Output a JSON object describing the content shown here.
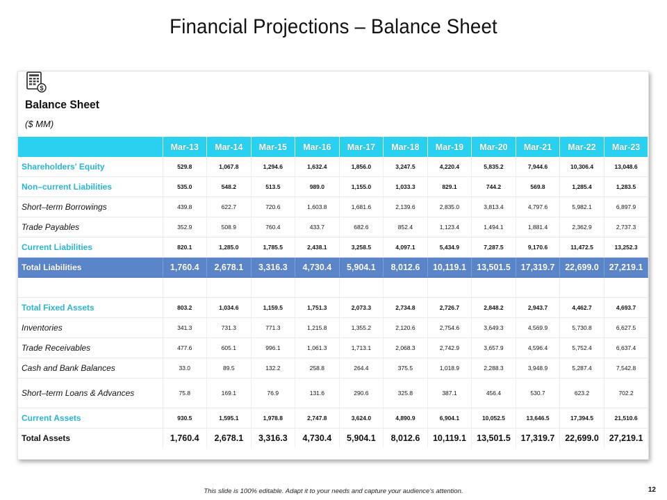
{
  "slide": {
    "title": "Financial Projections – Balance Sheet",
    "footer": "This slide is 100% editable. Adapt it to your needs and capture your audience's attention.",
    "page_number": "12"
  },
  "panel": {
    "icon": "balance-sheet-document-dollar-icon",
    "heading": "Balance Sheet",
    "unit": "($ MM)"
  },
  "colors": {
    "header_bg": "#2ad0ef",
    "total_bg": "#5b85c9",
    "blue_label": "#2ab3d6"
  },
  "table": {
    "columns": [
      "Mar-13",
      "Mar-14",
      "Mar-15",
      "Mar-16",
      "Mar-17",
      "Mar-18",
      "Mar-19",
      "Mar-20",
      "Mar-21",
      "Mar-22",
      "Mar-23"
    ],
    "rows": [
      {
        "label": "Shareholders' Equity",
        "values": [
          "529.8",
          "1,067.8",
          "1,294.6",
          "1,632.4",
          "1,856.0",
          "3,247.5",
          "4,220.4",
          "5,835.2",
          "7,944.6",
          "10,306.4",
          "13,048.6"
        ]
      },
      {
        "label": "Non–current Liabilities",
        "values": [
          "535.0",
          "548.2",
          "513.5",
          "989.0",
          "1,155.0",
          "1,033.3",
          "829.1",
          "744.2",
          "569.8",
          "1,285.4",
          "1,283.5"
        ]
      },
      {
        "label": "Short–term Borrowings",
        "values": [
          "439.8",
          "622.7",
          "720.6",
          "1,603.8",
          "1,681.6",
          "2,139.6",
          "2,835.0",
          "3,813.4",
          "4,797.6",
          "5,982.1",
          "6,897.9"
        ]
      },
      {
        "label": "Trade Payables",
        "values": [
          "352.9",
          "508.9",
          "760.4",
          "433.7",
          "682.6",
          "852.4",
          "1,123.4",
          "1,494.1",
          "1,881.4",
          "2,362.9",
          "2,737.3"
        ]
      },
      {
        "label": "Current Liabilities",
        "values": [
          "820.1",
          "1,285.0",
          "1,785.5",
          "2,438.1",
          "3,258.5",
          "4,097.1",
          "5,434.9",
          "7,287.5",
          "9,170.6",
          "11,472.5",
          "13,252.3"
        ]
      },
      {
        "label": "Total Liabilities",
        "values": [
          "1,760.4",
          "2,678.1",
          "3,316.3",
          "4,730.4",
          "5,904.1",
          "8,012.6",
          "10,119.1",
          "13,501.5",
          "17,319.7",
          "22,699.0",
          "27,219.1"
        ]
      },
      {
        "label": "Total Fixed Assets",
        "values": [
          "803.2",
          "1,034.6",
          "1,159.5",
          "1,751.3",
          "2,073.3",
          "2,734.8",
          "2,726.7",
          "2,848.2",
          "2,943.7",
          "4,462.7",
          "4,693.7"
        ]
      },
      {
        "label": "Inventories",
        "values": [
          "341.3",
          "731.3",
          "771.3",
          "1,215.8",
          "1,355.2",
          "2,120.6",
          "2,754.6",
          "3,649.3",
          "4,569.9",
          "5,730.8",
          "6,627.5"
        ]
      },
      {
        "label": "Trade Receivables",
        "values": [
          "477.6",
          "605.1",
          "996.1",
          "1,061.3",
          "1,713.1",
          "2,068.3",
          "2,742.9",
          "3,657.9",
          "4,596.4",
          "5,752.4",
          "6,637.4"
        ]
      },
      {
        "label": "Cash and Bank Balances",
        "values": [
          "33.0",
          "89.5",
          "132.2",
          "258.8",
          "264.4",
          "375.5",
          "1,018.9",
          "2,288.3",
          "3,948.9",
          "5,287.4",
          "7,542.8"
        ]
      },
      {
        "label": "Short–term Loans & Advances",
        "values": [
          "75.8",
          "169.1",
          "76.9",
          "131.6",
          "290.6",
          "325.8",
          "387.1",
          "456.4",
          "530.7",
          "623.2",
          "702.2"
        ]
      },
      {
        "label": "Current Assets",
        "values": [
          "930.5",
          "1,595.1",
          "1,978.8",
          "2,747.8",
          "3,624.0",
          "4,890.9",
          "6,904.1",
          "10,052.5",
          "13,646.5",
          "17,394.5",
          "21,510.6"
        ]
      },
      {
        "label": "Total Assets",
        "values": [
          "1,760.4",
          "2,678.1",
          "3,316.3",
          "4,730.4",
          "5,904.1",
          "8,012.6",
          "10,119.1",
          "13,501.5",
          "17,319.7",
          "22,699.0",
          "27,219.1"
        ]
      }
    ]
  }
}
